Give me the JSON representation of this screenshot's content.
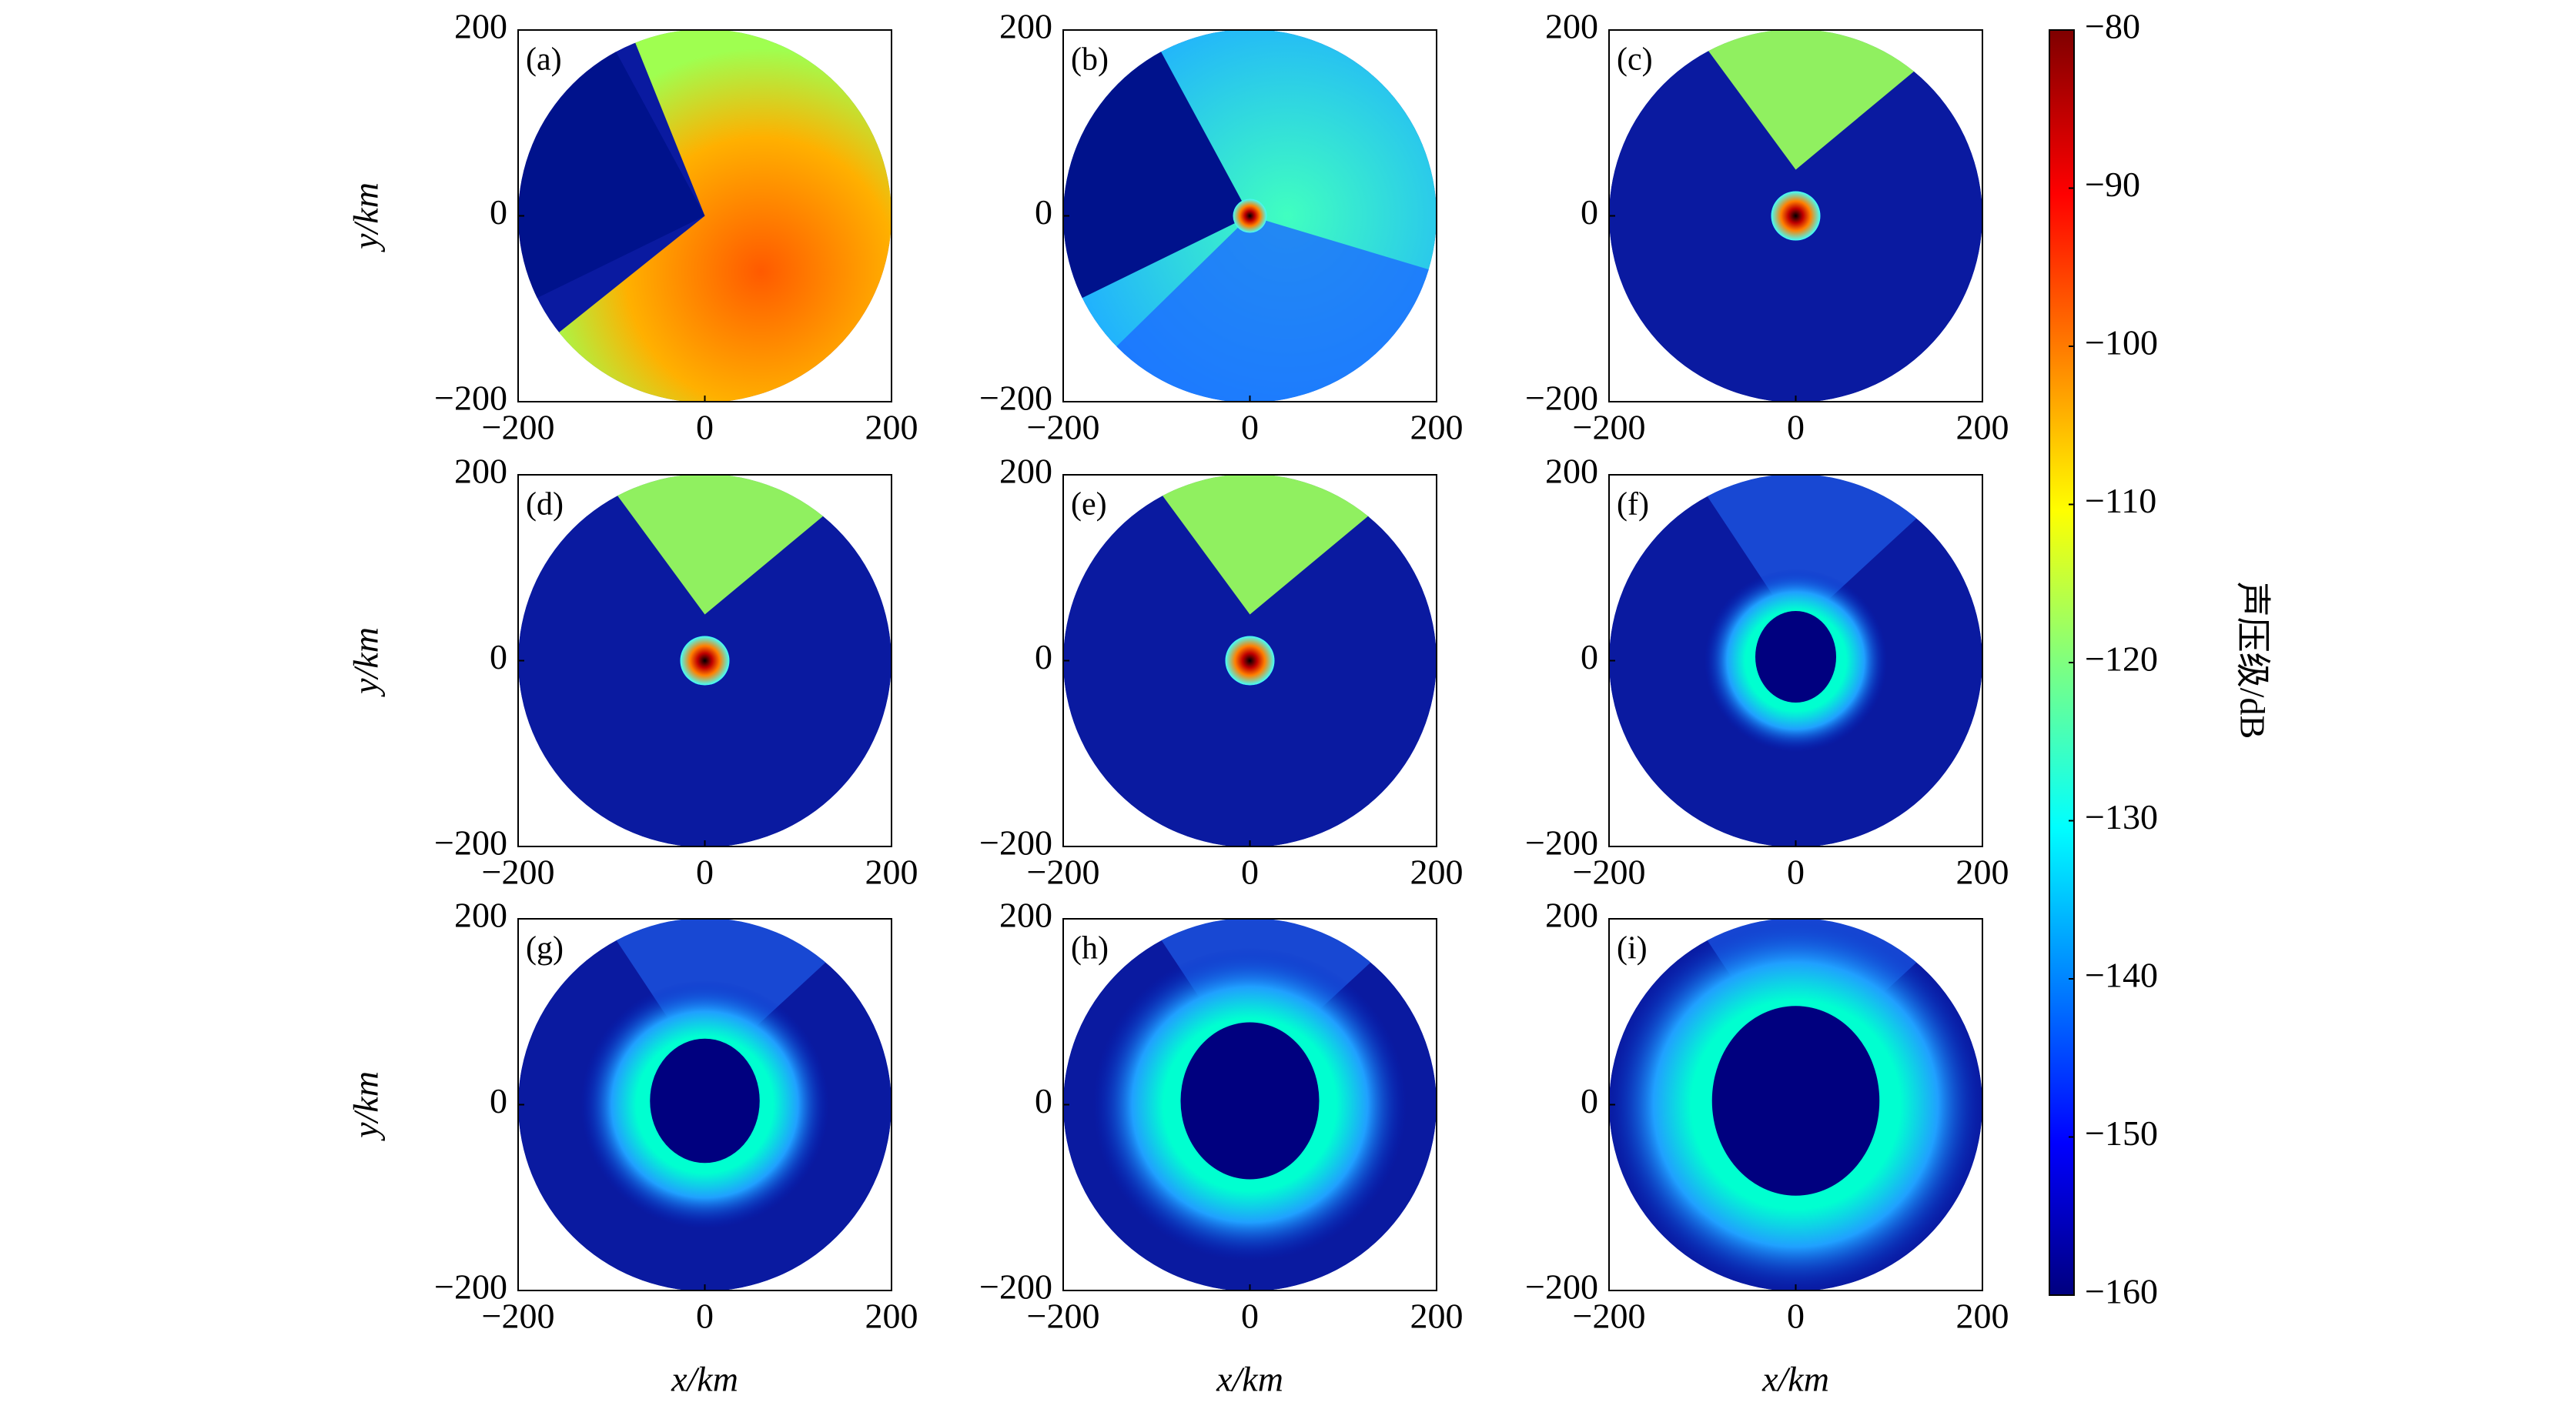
{
  "chart_data": {
    "type": "heatmap",
    "panels": [
      {
        "label": "(a)"
      },
      {
        "label": "(b)"
      },
      {
        "label": "(c)"
      },
      {
        "label": "(d)"
      },
      {
        "label": "(e)"
      },
      {
        "label": "(f)"
      },
      {
        "label": "(g)"
      },
      {
        "label": "(h)"
      },
      {
        "label": "(i)"
      }
    ],
    "xlabel": "x/km",
    "ylabel": "y/km",
    "xlim": [
      -200,
      200
    ],
    "ylim": [
      -200,
      200
    ],
    "xticks": [
      {
        "value": -200,
        "label": "−200"
      },
      0,
      200
    ],
    "yticks": [
      {
        "value": -200,
        "label": "−200"
      },
      0,
      200
    ],
    "colorbar": {
      "label": "声压级/dB",
      "lim": [
        -160,
        -80
      ],
      "ticks": [
        {
          "value": -80,
          "label": "−80"
        },
        {
          "value": -90,
          "label": "−90"
        },
        {
          "value": -100,
          "label": "−100"
        },
        {
          "value": -110,
          "label": "−110"
        },
        {
          "value": -120,
          "label": "−120"
        },
        {
          "value": -130,
          "label": "−130"
        },
        {
          "value": -140,
          "label": "−140"
        },
        {
          "value": -150,
          "label": "−150"
        },
        {
          "value": -160,
          "label": "−160"
        }
      ]
    }
  }
}
